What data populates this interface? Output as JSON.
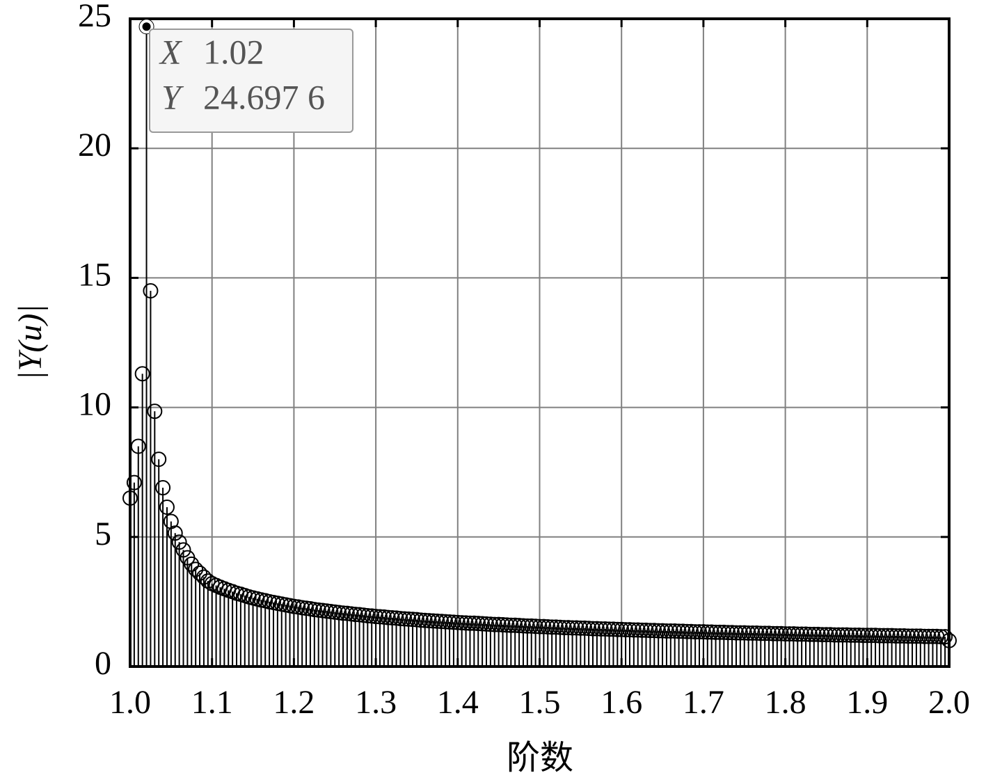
{
  "chart_data": {
    "type": "stem",
    "x": [
      1,
      1.005,
      1.01,
      1.015,
      1.02,
      1.025,
      1.03,
      1.035,
      1.04,
      1.045,
      1.05,
      1.055,
      1.06,
      1.065,
      1.07,
      1.075,
      1.08,
      1.085,
      1.09,
      1.095,
      1.1,
      1.105,
      1.11,
      1.115,
      1.12,
      1.125,
      1.13,
      1.135,
      1.14,
      1.145,
      1.15,
      1.155,
      1.16,
      1.165,
      1.17,
      1.175,
      1.18,
      1.185,
      1.19,
      1.195,
      1.2,
      1.205,
      1.21,
      1.215,
      1.22,
      1.225,
      1.23,
      1.235,
      1.24,
      1.245,
      1.25,
      1.255,
      1.26,
      1.265,
      1.27,
      1.275,
      1.28,
      1.285,
      1.29,
      1.295,
      1.3,
      1.305,
      1.31,
      1.315,
      1.32,
      1.325,
      1.33,
      1.335,
      1.34,
      1.345,
      1.35,
      1.355,
      1.36,
      1.365,
      1.37,
      1.375,
      1.38,
      1.385,
      1.39,
      1.395,
      1.4,
      1.405,
      1.41,
      1.415,
      1.42,
      1.425,
      1.43,
      1.435,
      1.44,
      1.445,
      1.45,
      1.455,
      1.46,
      1.465,
      1.47,
      1.475,
      1.48,
      1.485,
      1.49,
      1.495,
      1.5,
      1.505,
      1.51,
      1.515,
      1.52,
      1.525,
      1.53,
      1.535,
      1.54,
      1.545,
      1.55,
      1.555,
      1.56,
      1.565,
      1.57,
      1.575,
      1.58,
      1.585,
      1.59,
      1.595,
      1.6,
      1.605,
      1.61,
      1.615,
      1.62,
      1.625,
      1.63,
      1.635,
      1.64,
      1.645,
      1.65,
      1.655,
      1.66,
      1.665,
      1.67,
      1.675,
      1.68,
      1.685,
      1.69,
      1.695,
      1.7,
      1.705,
      1.71,
      1.715,
      1.72,
      1.725,
      1.73,
      1.735,
      1.74,
      1.745,
      1.75,
      1.755,
      1.76,
      1.765,
      1.77,
      1.775,
      1.78,
      1.785,
      1.79,
      1.795,
      1.8,
      1.805,
      1.81,
      1.815,
      1.82,
      1.825,
      1.83,
      1.835,
      1.84,
      1.845,
      1.85,
      1.855,
      1.86,
      1.865,
      1.87,
      1.875,
      1.88,
      1.885,
      1.89,
      1.895,
      1.9,
      1.905,
      1.91,
      1.915,
      1.92,
      1.925,
      1.93,
      1.935,
      1.94,
      1.945,
      1.95,
      1.955,
      1.96,
      1.965,
      1.97,
      1.975,
      1.98,
      1.985,
      1.99,
      1.995,
      2
    ],
    "values": [
      6.5,
      7.1,
      8.5,
      11.3,
      24.6976,
      14.5,
      9.85,
      8,
      6.9,
      6.15,
      5.6,
      5.15,
      4.8,
      4.5,
      4.2,
      3.95,
      3.75,
      3.6,
      3.45,
      3.3,
      3.2,
      3.13,
      3.06,
      3.0,
      2.94,
      2.89,
      2.83,
      2.79,
      2.74,
      2.69,
      2.65,
      2.61,
      2.57,
      2.54,
      2.5,
      2.47,
      2.44,
      2.41,
      2.38,
      2.35,
      2.32,
      2.3,
      2.27,
      2.25,
      2.23,
      2.2,
      2.18,
      2.16,
      2.14,
      2.12,
      2.1,
      2.08,
      2.06,
      2.05,
      2.03,
      2.01,
      2.0,
      1.98,
      1.96,
      1.95,
      1.93,
      1.92,
      1.91,
      1.89,
      1.88,
      1.87,
      1.85,
      1.84,
      1.83,
      1.82,
      1.81,
      1.79,
      1.78,
      1.77,
      1.76,
      1.75,
      1.74,
      1.73,
      1.72,
      1.71,
      1.7,
      1.69,
      1.68,
      1.67,
      1.67,
      1.66,
      1.65,
      1.64,
      1.63,
      1.62,
      1.62,
      1.61,
      1.6,
      1.59,
      1.59,
      1.58,
      1.57,
      1.56,
      1.56,
      1.55,
      1.54,
      1.54,
      1.53,
      1.52,
      1.52,
      1.51,
      1.5,
      1.5,
      1.49,
      1.49,
      1.48,
      1.48,
      1.47,
      1.46,
      1.46,
      1.45,
      1.45,
      1.44,
      1.44,
      1.43,
      1.43,
      1.42,
      1.42,
      1.41,
      1.41,
      1.4,
      1.4,
      1.39,
      1.39,
      1.38,
      1.38,
      1.37,
      1.37,
      1.37,
      1.36,
      1.36,
      1.35,
      1.35,
      1.34,
      1.34,
      1.34,
      1.33,
      1.33,
      1.32,
      1.32,
      1.32,
      1.31,
      1.31,
      1.3,
      1.3,
      1.3,
      1.29,
      1.29,
      1.29,
      1.28,
      1.28,
      1.28,
      1.27,
      1.27,
      1.27,
      1.26,
      1.26,
      1.26,
      1.25,
      1.25,
      1.25,
      1.24,
      1.24,
      1.24,
      1.23,
      1.23,
      1.23,
      1.22,
      1.22,
      1.22,
      1.22,
      1.21,
      1.21,
      1.21,
      1.2,
      1.2,
      1.2,
      1.2,
      1.19,
      1.19,
      1.19,
      1.19,
      1.18,
      1.18,
      1.18,
      1.17,
      1.17,
      1.17,
      1.17,
      1.16,
      1.16,
      1.16,
      1.16,
      1.15,
      1.15,
      1.0
    ],
    "color": "#000000",
    "xlim": [
      1,
      2
    ],
    "ylim": [
      0,
      25
    ],
    "xticks": [
      {
        "value": 1,
        "label": "1.0"
      },
      1.1,
      1.2,
      1.3,
      1.4,
      1.5,
      1.6,
      1.7,
      1.8,
      1.9,
      {
        "value": 2,
        "label": "2.0"
      }
    ],
    "yticks": [
      0,
      5,
      10,
      15,
      20,
      25
    ],
    "grid": true,
    "xlabel": "阶数",
    "ylabel": "|Y(u)|",
    "datatip": {
      "x_name": "X",
      "x": 1.02,
      "y_name": "Y",
      "y": {
        "value": 24.6976,
        "label": "24.697 6"
      }
    }
  }
}
